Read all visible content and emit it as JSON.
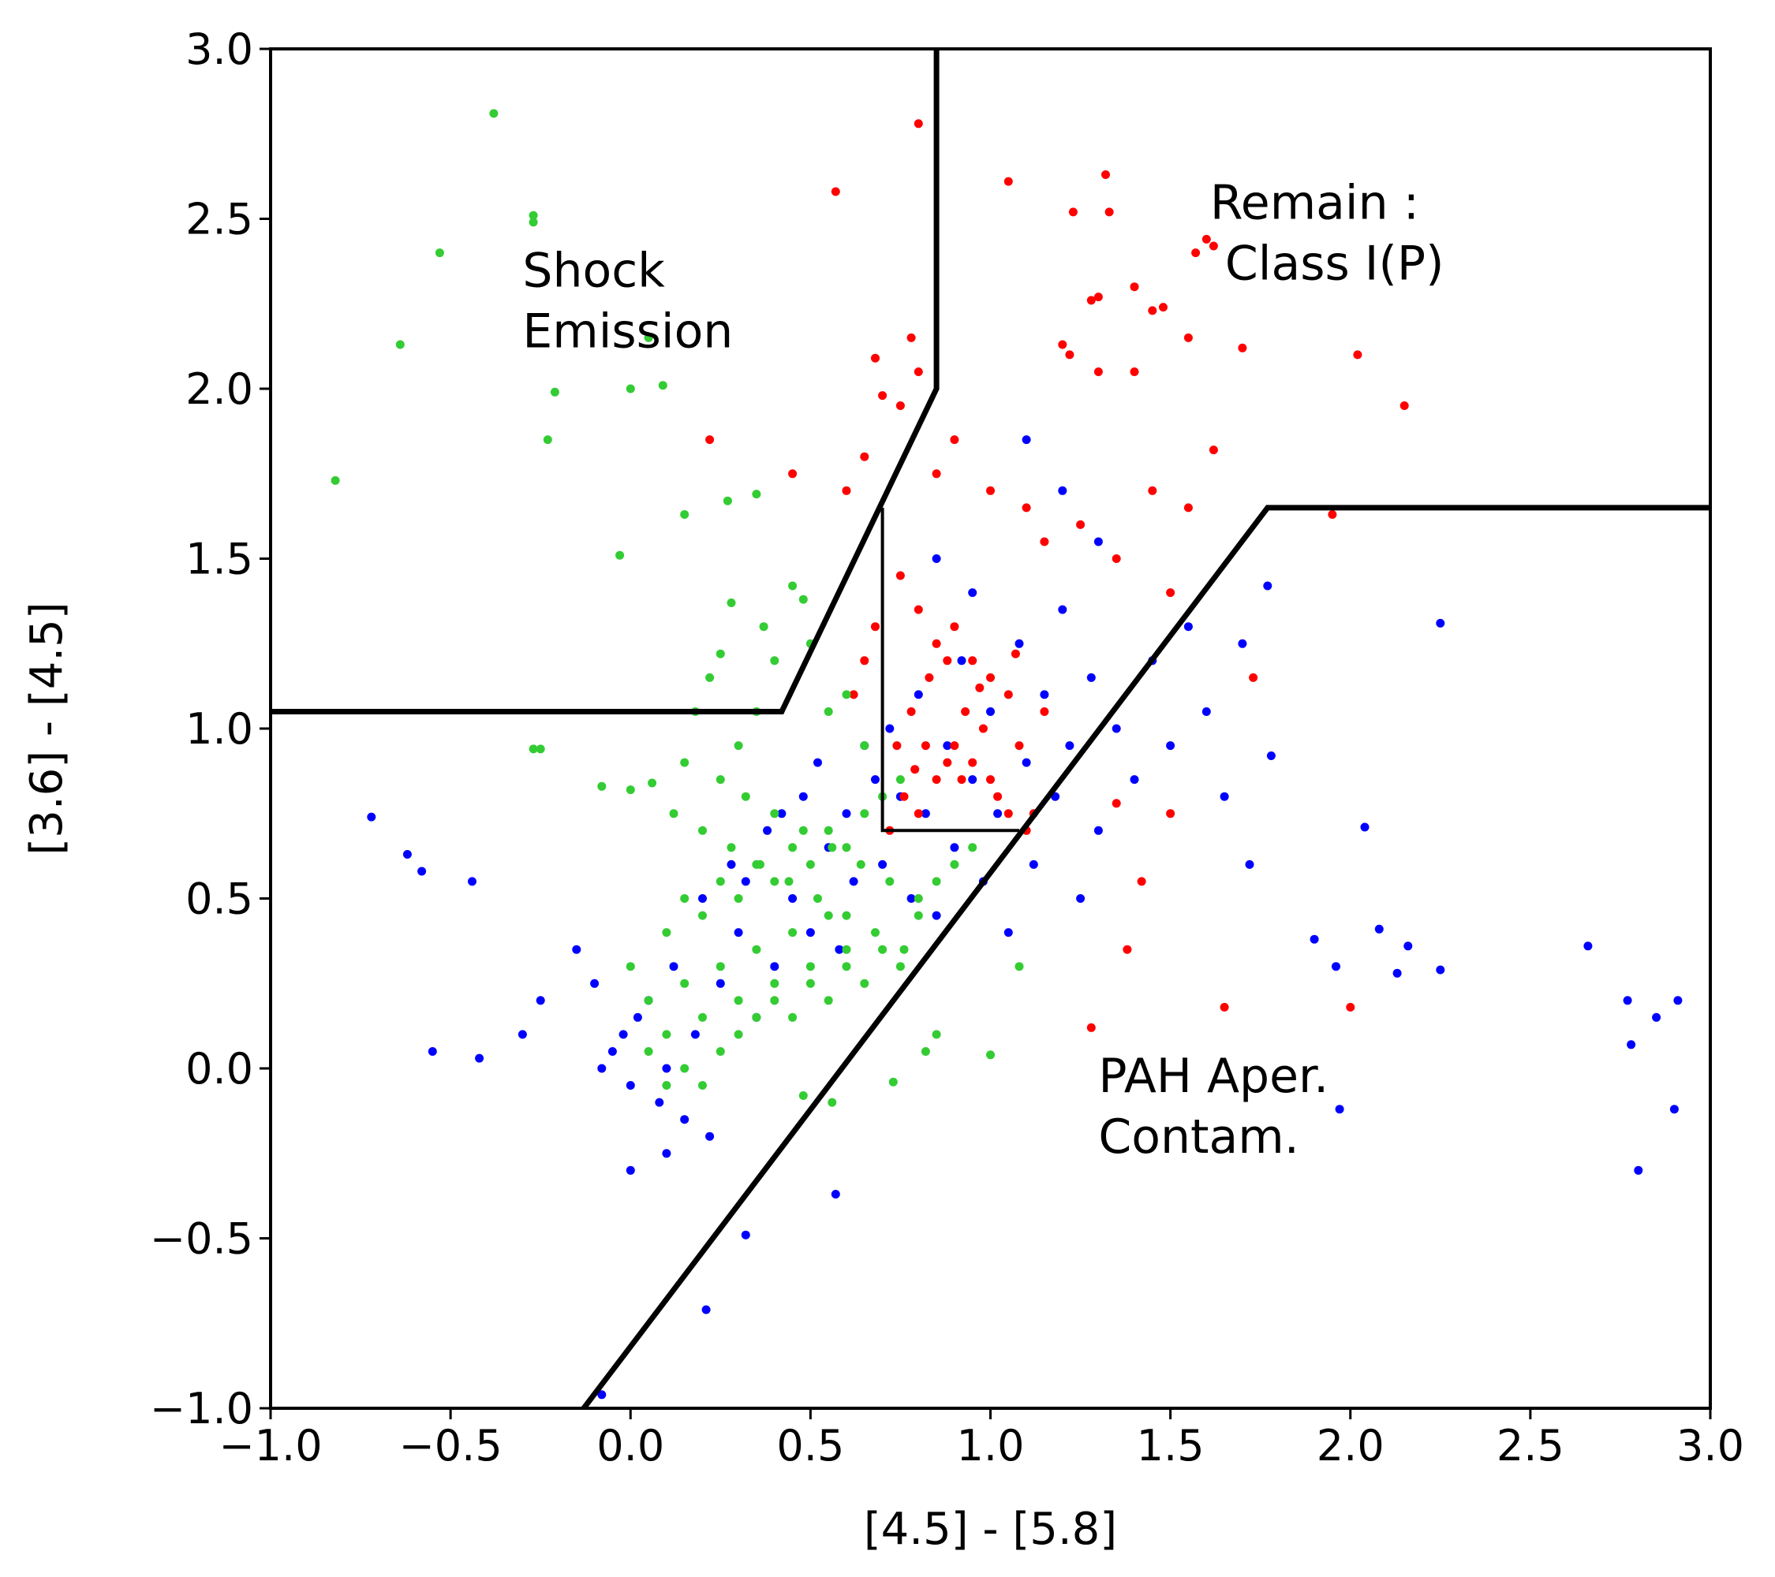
{
  "chart_data": {
    "type": "scatter",
    "title": "",
    "xlabel": "[4.5] - [5.8]",
    "ylabel": "[3.6] - [4.5]",
    "xlim": [
      -1.0,
      3.0
    ],
    "ylim": [
      -1.0,
      3.0
    ],
    "xticks": [
      "−1.0",
      "−0.5",
      "0.0",
      "0.5",
      "1.0",
      "1.5",
      "2.0",
      "2.5",
      "3.0"
    ],
    "yticks": [
      "−1.0",
      "−0.5",
      "0.0",
      "0.5",
      "1.0",
      "1.5",
      "2.0",
      "2.5",
      "3.0"
    ],
    "grid": false,
    "legend": "none",
    "series": [
      {
        "color": "#0000ff",
        "points": [
          [
            -0.72,
            0.74
          ],
          [
            -0.62,
            0.63
          ],
          [
            -0.58,
            0.58
          ],
          [
            -0.44,
            0.55
          ],
          [
            -0.55,
            0.05
          ],
          [
            -0.42,
            0.03
          ],
          [
            -0.3,
            0.1
          ],
          [
            -0.25,
            0.2
          ],
          [
            -0.15,
            0.35
          ],
          [
            -0.1,
            0.25
          ],
          [
            -0.08,
            0.0
          ],
          [
            -0.05,
            0.05
          ],
          [
            -0.02,
            0.1
          ],
          [
            0.0,
            -0.05
          ],
          [
            0.02,
            0.15
          ],
          [
            0.05,
            0.2
          ],
          [
            0.08,
            -0.1
          ],
          [
            0.1,
            0.0
          ],
          [
            0.12,
            0.3
          ],
          [
            0.15,
            -0.15
          ],
          [
            0.18,
            0.1
          ],
          [
            0.2,
            0.5
          ],
          [
            0.22,
            -0.2
          ],
          [
            0.25,
            0.25
          ],
          [
            0.28,
            0.6
          ],
          [
            0.3,
            0.4
          ],
          [
            0.32,
            0.55
          ],
          [
            0.35,
            0.15
          ],
          [
            0.38,
            0.7
          ],
          [
            0.4,
            0.3
          ],
          [
            0.42,
            0.75
          ],
          [
            0.45,
            0.5
          ],
          [
            0.48,
            0.8
          ],
          [
            0.5,
            0.4
          ],
          [
            0.52,
            0.9
          ],
          [
            0.55,
            0.65
          ],
          [
            0.58,
            0.35
          ],
          [
            0.6,
            0.75
          ],
          [
            0.62,
            0.55
          ],
          [
            0.65,
            0.95
          ],
          [
            0.68,
            0.85
          ],
          [
            0.7,
            0.6
          ],
          [
            0.72,
            1.0
          ],
          [
            0.75,
            0.8
          ],
          [
            0.78,
            0.5
          ],
          [
            0.8,
            1.1
          ],
          [
            0.82,
            0.75
          ],
          [
            0.85,
            0.45
          ],
          [
            0.88,
            0.95
          ],
          [
            0.9,
            0.65
          ],
          [
            0.92,
            1.2
          ],
          [
            0.95,
            0.85
          ],
          [
            0.98,
            0.55
          ],
          [
            1.0,
            1.05
          ],
          [
            1.02,
            0.75
          ],
          [
            1.05,
            0.4
          ],
          [
            1.08,
            1.25
          ],
          [
            1.1,
            0.9
          ],
          [
            1.12,
            0.6
          ],
          [
            1.15,
            1.1
          ],
          [
            1.18,
            0.8
          ],
          [
            1.2,
            1.35
          ],
          [
            1.22,
            0.95
          ],
          [
            1.25,
            0.5
          ],
          [
            1.28,
            1.15
          ],
          [
            1.3,
            0.7
          ],
          [
            1.35,
            1.0
          ],
          [
            1.4,
            0.85
          ],
          [
            1.45,
            1.2
          ],
          [
            1.5,
            0.95
          ],
          [
            1.55,
            1.3
          ],
          [
            1.6,
            1.05
          ],
          [
            1.65,
            0.8
          ],
          [
            1.7,
            1.25
          ],
          [
            1.72,
            0.6
          ],
          [
            1.77,
            1.42
          ],
          [
            1.78,
            0.92
          ],
          [
            1.9,
            0.38
          ],
          [
            1.96,
            0.3
          ],
          [
            2.04,
            0.71
          ],
          [
            2.08,
            0.41
          ],
          [
            2.13,
            0.28
          ],
          [
            2.16,
            0.36
          ],
          [
            2.25,
            1.31
          ],
          [
            2.25,
            0.29
          ],
          [
            2.66,
            0.36
          ],
          [
            2.77,
            0.2
          ],
          [
            2.78,
            0.07
          ],
          [
            2.8,
            -0.3
          ],
          [
            2.85,
            0.15
          ],
          [
            2.9,
            -0.12
          ],
          [
            2.91,
            0.2
          ],
          [
            0.21,
            -0.71
          ],
          [
            0.32,
            -0.49
          ],
          [
            0.57,
            -0.37
          ],
          [
            1.97,
            -0.12
          ],
          [
            -0.08,
            -0.96
          ],
          [
            0.0,
            -0.3
          ],
          [
            0.1,
            -0.25
          ],
          [
            1.1,
            1.85
          ],
          [
            1.2,
            1.7
          ],
          [
            1.3,
            1.55
          ],
          [
            0.85,
            1.5
          ],
          [
            0.95,
            1.4
          ]
        ]
      },
      {
        "color": "#ff0000",
        "points": [
          [
            0.8,
            2.78
          ],
          [
            0.57,
            2.58
          ],
          [
            1.05,
            2.61
          ],
          [
            1.32,
            2.63
          ],
          [
            1.33,
            2.52
          ],
          [
            1.23,
            2.52
          ],
          [
            1.6,
            2.44
          ],
          [
            1.57,
            2.4
          ],
          [
            1.62,
            2.42
          ],
          [
            1.4,
            2.3
          ],
          [
            1.48,
            2.24
          ],
          [
            1.45,
            2.23
          ],
          [
            1.3,
            2.27
          ],
          [
            1.28,
            2.26
          ],
          [
            1.2,
            2.13
          ],
          [
            1.22,
            2.1
          ],
          [
            1.3,
            2.05
          ],
          [
            1.4,
            2.05
          ],
          [
            1.55,
            2.15
          ],
          [
            1.7,
            2.12
          ],
          [
            2.02,
            2.1
          ],
          [
            2.15,
            1.95
          ],
          [
            0.68,
            2.09
          ],
          [
            0.7,
            1.98
          ],
          [
            0.75,
            1.95
          ],
          [
            0.8,
            2.05
          ],
          [
            0.78,
            2.15
          ],
          [
            0.22,
            1.85
          ],
          [
            0.45,
            1.75
          ],
          [
            0.6,
            1.7
          ],
          [
            0.65,
            1.8
          ],
          [
            0.85,
            1.75
          ],
          [
            0.9,
            1.85
          ],
          [
            1.0,
            1.7
          ],
          [
            1.1,
            1.65
          ],
          [
            1.15,
            1.55
          ],
          [
            1.25,
            1.6
          ],
          [
            1.35,
            1.5
          ],
          [
            1.45,
            1.7
          ],
          [
            1.55,
            1.65
          ],
          [
            1.5,
            1.4
          ],
          [
            1.62,
            1.82
          ],
          [
            1.95,
            1.63
          ],
          [
            0.75,
            1.45
          ],
          [
            0.8,
            1.35
          ],
          [
            0.85,
            1.25
          ],
          [
            0.9,
            1.3
          ],
          [
            0.95,
            1.2
          ],
          [
            1.0,
            1.15
          ],
          [
            1.05,
            1.1
          ],
          [
            0.78,
            1.05
          ],
          [
            0.82,
            0.95
          ],
          [
            0.88,
            0.9
          ],
          [
            0.92,
            0.85
          ],
          [
            0.98,
            1.0
          ],
          [
            1.02,
            0.8
          ],
          [
            1.08,
            0.95
          ],
          [
            1.12,
            0.75
          ],
          [
            1.15,
            1.05
          ],
          [
            0.72,
            0.7
          ],
          [
            0.76,
            0.8
          ],
          [
            0.8,
            0.75
          ],
          [
            0.85,
            0.85
          ],
          [
            0.9,
            0.95
          ],
          [
            0.95,
            0.9
          ],
          [
            1.0,
            0.85
          ],
          [
            1.05,
            0.75
          ],
          [
            0.65,
            1.2
          ],
          [
            0.62,
            1.1
          ],
          [
            0.68,
            1.3
          ],
          [
            1.5,
            0.75
          ],
          [
            1.42,
            0.55
          ],
          [
            1.38,
            0.35
          ],
          [
            1.65,
            0.18
          ],
          [
            2.0,
            0.18
          ],
          [
            1.28,
            0.12
          ],
          [
            1.73,
            1.15
          ],
          [
            1.35,
            0.78
          ],
          [
            1.1,
            0.7
          ],
          [
            0.83,
            1.15
          ],
          [
            0.88,
            1.2
          ],
          [
            0.93,
            1.05
          ],
          [
            0.97,
            1.12
          ],
          [
            1.07,
            1.22
          ],
          [
            0.74,
            0.95
          ],
          [
            0.79,
            0.88
          ]
        ]
      },
      {
        "color": "#33cc33",
        "points": [
          [
            -0.38,
            2.81
          ],
          [
            -0.27,
            2.51
          ],
          [
            -0.27,
            2.49
          ],
          [
            -0.53,
            2.4
          ],
          [
            -0.64,
            2.13
          ],
          [
            -0.82,
            1.73
          ],
          [
            -0.21,
            1.99
          ],
          [
            -0.23,
            1.85
          ],
          [
            0.0,
            2.0
          ],
          [
            0.09,
            2.01
          ],
          [
            0.05,
            2.15
          ],
          [
            0.15,
            1.63
          ],
          [
            0.27,
            1.67
          ],
          [
            0.35,
            1.69
          ],
          [
            -0.03,
            1.51
          ],
          [
            0.28,
            1.37
          ],
          [
            0.37,
            1.3
          ],
          [
            0.4,
            1.2
          ],
          [
            0.45,
            1.42
          ],
          [
            0.48,
            1.38
          ],
          [
            0.5,
            1.25
          ],
          [
            0.25,
            1.22
          ],
          [
            0.18,
            1.05
          ],
          [
            0.22,
            1.15
          ],
          [
            0.3,
            0.95
          ],
          [
            0.35,
            1.05
          ],
          [
            -0.27,
            0.94
          ],
          [
            -0.25,
            0.94
          ],
          [
            -0.08,
            0.83
          ],
          [
            0.0,
            0.82
          ],
          [
            0.06,
            0.84
          ],
          [
            0.12,
            0.75
          ],
          [
            0.15,
            0.9
          ],
          [
            0.2,
            0.7
          ],
          [
            0.25,
            0.85
          ],
          [
            0.28,
            0.65
          ],
          [
            0.32,
            0.8
          ],
          [
            0.36,
            0.6
          ],
          [
            0.4,
            0.75
          ],
          [
            0.44,
            0.55
          ],
          [
            0.48,
            0.7
          ],
          [
            0.52,
            0.5
          ],
          [
            0.56,
            0.65
          ],
          [
            0.6,
            0.45
          ],
          [
            0.64,
            0.6
          ],
          [
            0.68,
            0.4
          ],
          [
            0.72,
            0.55
          ],
          [
            0.76,
            0.35
          ],
          [
            0.8,
            0.5
          ],
          [
            0.0,
            0.3
          ],
          [
            0.05,
            0.2
          ],
          [
            0.1,
            0.1
          ],
          [
            0.15,
            0.25
          ],
          [
            0.2,
            0.15
          ],
          [
            0.25,
            0.3
          ],
          [
            0.3,
            0.2
          ],
          [
            0.35,
            0.35
          ],
          [
            0.4,
            0.25
          ],
          [
            0.45,
            0.4
          ],
          [
            0.5,
            0.3
          ],
          [
            0.55,
            0.45
          ],
          [
            0.6,
            0.35
          ],
          [
            0.1,
            0.4
          ],
          [
            0.15,
            0.5
          ],
          [
            0.2,
            0.45
          ],
          [
            0.25,
            0.55
          ],
          [
            0.3,
            0.5
          ],
          [
            0.35,
            0.6
          ],
          [
            0.4,
            0.55
          ],
          [
            0.45,
            0.65
          ],
          [
            0.5,
            0.6
          ],
          [
            0.55,
            0.7
          ],
          [
            0.6,
            0.65
          ],
          [
            0.65,
            0.75
          ],
          [
            0.7,
            0.8
          ],
          [
            0.75,
            0.85
          ],
          [
            0.05,
            0.05
          ],
          [
            0.1,
            -0.05
          ],
          [
            0.15,
            0.0
          ],
          [
            0.2,
            -0.05
          ],
          [
            0.25,
            0.05
          ],
          [
            0.3,
            0.1
          ],
          [
            0.35,
            0.15
          ],
          [
            0.4,
            0.2
          ],
          [
            0.45,
            0.15
          ],
          [
            0.5,
            0.25
          ],
          [
            0.55,
            0.2
          ],
          [
            0.6,
            0.3
          ],
          [
            0.65,
            0.25
          ],
          [
            0.7,
            0.35
          ],
          [
            0.75,
            0.3
          ],
          [
            0.8,
            0.45
          ],
          [
            0.85,
            0.55
          ],
          [
            0.9,
            0.6
          ],
          [
            0.95,
            0.65
          ],
          [
            0.73,
            -0.04
          ],
          [
            0.56,
            -0.1
          ],
          [
            0.48,
            -0.08
          ],
          [
            0.85,
            0.1
          ],
          [
            0.82,
            0.05
          ],
          [
            1.0,
            0.04
          ],
          [
            1.08,
            0.3
          ],
          [
            0.55,
            1.05
          ],
          [
            0.6,
            1.1
          ],
          [
            0.65,
            0.95
          ]
        ]
      }
    ],
    "region_lines": [
      [
        [
          -1.0,
          1.05
        ],
        [
          0.42,
          1.05
        ],
        [
          0.85,
          2.0
        ],
        [
          0.85,
          3.0
        ]
      ],
      [
        [
          -0.13,
          -1.0
        ],
        [
          1.77,
          1.65
        ],
        [
          3.0,
          1.65
        ]
      ]
    ],
    "aux_line": [
      [
        0.7,
        1.65
      ],
      [
        0.7,
        0.7
      ],
      [
        1.08,
        0.7
      ]
    ],
    "annotations": [
      {
        "lines": [
          "Shock",
          "Emission"
        ],
        "x": -0.3,
        "y": 2.3
      },
      {
        "lines": [
          "Remain :",
          " Class I(P)"
        ],
        "x": 1.61,
        "y": 2.5
      },
      {
        "lines": [
          "PAH Aper.",
          "Contam."
        ],
        "x": 1.3,
        "y": -0.07
      }
    ]
  }
}
